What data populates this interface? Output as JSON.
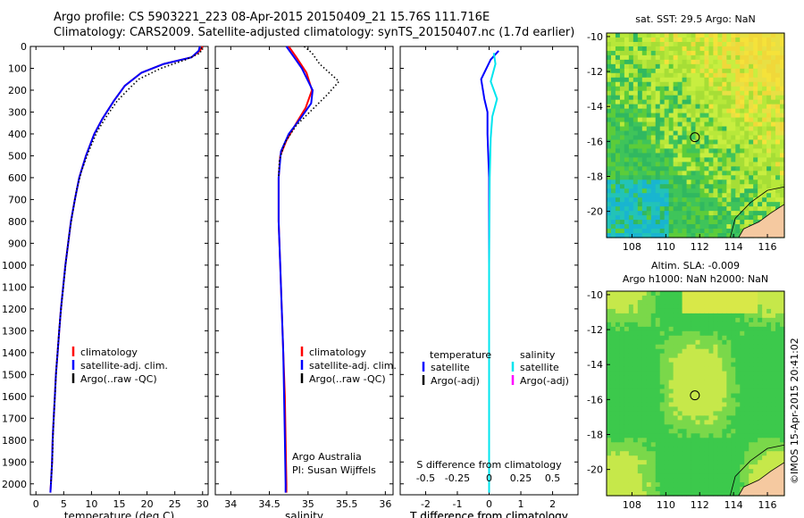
{
  "header": {
    "title": "Argo profile: CS 5903221_223 08-Apr-2015 20150409_21 15.76S 111.716E",
    "subtitle": "Climatology: CARS2009. Satellite-adjusted climatology: synTS_20150407.nc (1.7d earlier)"
  },
  "footer": {
    "stamp": "©IMOS 15-Apr-2015 20:41:02"
  },
  "colors": {
    "climatology": "#ff0000",
    "satellite": "#0000ff",
    "argo": "#000000",
    "salinity_satellite": "#00e5ee",
    "salinity_argo": "#ff00ff",
    "land": "#f5c9a0"
  },
  "chart_data": [
    {
      "id": "temperature",
      "type": "line",
      "xlabel": "temperature (deg C)",
      "ylabel": "",
      "xlim": [
        -1,
        31
      ],
      "ylim": [
        2050,
        0
      ],
      "xticks": [
        "0",
        "5",
        "10",
        "15",
        "20",
        "25",
        "30"
      ],
      "yticks": [
        "0",
        "100",
        "200",
        "300",
        "400",
        "500",
        "600",
        "700",
        "800",
        "900",
        "1000",
        "1100",
        "1200",
        "1300",
        "1400",
        "1500",
        "1600",
        "1700",
        "1800",
        "1900",
        "2000"
      ],
      "legend": [
        "climatology",
        "satellite-adj. clim.",
        "Argo(..raw -QC)"
      ],
      "series": [
        {
          "name": "climatology",
          "color": "#ff0000",
          "points": [
            [
              30,
              0
            ],
            [
              29.5,
              20
            ],
            [
              28,
              50
            ],
            [
              23,
              80
            ],
            [
              19,
              120
            ],
            [
              16,
              180
            ],
            [
              14,
              250
            ],
            [
              12,
              330
            ],
            [
              10.5,
              400
            ],
            [
              9,
              500
            ],
            [
              7.8,
              600
            ],
            [
              7,
              700
            ],
            [
              6.3,
              800
            ],
            [
              5.8,
              900
            ],
            [
              5.3,
              1000
            ],
            [
              4.9,
              1100
            ],
            [
              4.5,
              1200
            ],
            [
              4.2,
              1300
            ],
            [
              3.9,
              1400
            ],
            [
              3.6,
              1500
            ],
            [
              3.4,
              1600
            ],
            [
              3.2,
              1700
            ],
            [
              3,
              1800
            ],
            [
              2.9,
              1900
            ],
            [
              2.7,
              2000
            ],
            [
              2.6,
              2040
            ]
          ]
        },
        {
          "name": "satellite-adj. clim.",
          "color": "#0000ff",
          "points": [
            [
              29.5,
              0
            ],
            [
              29.3,
              20
            ],
            [
              28,
              50
            ],
            [
              23,
              80
            ],
            [
              19,
              120
            ],
            [
              16,
              180
            ],
            [
              14,
              250
            ],
            [
              12,
              330
            ],
            [
              10.5,
              400
            ],
            [
              9,
              500
            ],
            [
              7.8,
              600
            ],
            [
              7,
              700
            ],
            [
              6.3,
              800
            ],
            [
              5.8,
              900
            ],
            [
              5.3,
              1000
            ],
            [
              4.9,
              1100
            ],
            [
              4.5,
              1200
            ],
            [
              4.2,
              1300
            ],
            [
              3.9,
              1400
            ],
            [
              3.6,
              1500
            ],
            [
              3.4,
              1600
            ],
            [
              3.2,
              1700
            ],
            [
              3,
              1800
            ],
            [
              2.9,
              1900
            ],
            [
              2.7,
              2000
            ],
            [
              2.6,
              2040
            ]
          ]
        },
        {
          "name": "Argo(..raw -QC)",
          "color": "#000000",
          "dash": true,
          "points": [
            [
              29.8,
              5
            ],
            [
              29.6,
              30
            ],
            [
              27,
              60
            ],
            [
              22.5,
              100
            ],
            [
              18.5,
              150
            ],
            [
              16.5,
              200
            ],
            [
              14.6,
              250
            ],
            [
              12.7,
              320
            ],
            [
              11,
              390
            ],
            [
              9.5,
              480
            ],
            [
              8.2,
              570
            ],
            [
              7.3,
              660
            ],
            [
              6.6,
              760
            ],
            [
              6,
              860
            ],
            [
              5.5,
              960
            ],
            [
              5.1,
              1060
            ],
            [
              4.7,
              1160
            ],
            [
              4.3,
              1260
            ],
            [
              4,
              1360
            ],
            [
              3.7,
              1460
            ],
            [
              3.5,
              1560
            ],
            [
              3.3,
              1660
            ],
            [
              3.1,
              1760
            ],
            [
              3,
              1860
            ],
            [
              2.8,
              1960
            ],
            [
              2.7,
              2000
            ]
          ]
        }
      ]
    },
    {
      "id": "salinity",
      "type": "line",
      "xlabel": "salinity",
      "xlim": [
        33.8,
        36.1
      ],
      "ylim": [
        2050,
        0
      ],
      "xticks": [
        "34",
        "34.5",
        "35",
        "35.5",
        "36"
      ],
      "legend": [
        "climatology",
        "satellite-adj. clim.",
        "Argo(..raw -QC)"
      ],
      "annotation": [
        "Argo Australia",
        "PI: Susan Wijffels"
      ],
      "series": [
        {
          "name": "climatology",
          "color": "#ff0000",
          "points": [
            [
              34.75,
              0
            ],
            [
              34.85,
              50
            ],
            [
              34.98,
              120
            ],
            [
              35.05,
              200
            ],
            [
              34.97,
              280
            ],
            [
              34.85,
              350
            ],
            [
              34.72,
              430
            ],
            [
              34.64,
              500
            ],
            [
              34.62,
              600
            ],
            [
              34.62,
              800
            ],
            [
              34.64,
              1000
            ],
            [
              34.66,
              1200
            ],
            [
              34.68,
              1400
            ],
            [
              34.7,
              1600
            ],
            [
              34.71,
              1800
            ],
            [
              34.72,
              2000
            ],
            [
              34.72,
              2040
            ]
          ]
        },
        {
          "name": "satellite-adj. clim.",
          "color": "#0000ff",
          "points": [
            [
              34.72,
              0
            ],
            [
              34.82,
              50
            ],
            [
              34.92,
              100
            ],
            [
              35.06,
              200
            ],
            [
              35.04,
              260
            ],
            [
              34.9,
              330
            ],
            [
              34.75,
              400
            ],
            [
              34.65,
              480
            ],
            [
              34.62,
              600
            ],
            [
              34.62,
              800
            ],
            [
              34.64,
              1000
            ],
            [
              34.66,
              1200
            ],
            [
              34.68,
              1400
            ],
            [
              34.69,
              1600
            ],
            [
              34.7,
              1800
            ],
            [
              34.71,
              2000
            ],
            [
              34.71,
              2040
            ]
          ]
        },
        {
          "name": "Argo(..raw -QC)",
          "color": "#000000",
          "dash": true,
          "points": [
            [
              34.95,
              0
            ],
            [
              35.05,
              30
            ],
            [
              35.15,
              80
            ],
            [
              35.4,
              160
            ],
            [
              35.25,
              220
            ],
            [
              35.05,
              290
            ],
            [
              34.85,
              360
            ],
            [
              34.7,
              440
            ],
            [
              34.63,
              520
            ],
            [
              34.62,
              600
            ]
          ]
        }
      ]
    },
    {
      "id": "difference",
      "type": "line",
      "xlabel": "T difference from climatology",
      "xlabel_top": "S difference from climatology",
      "xlim": [
        -2.8,
        2.8
      ],
      "ylim": [
        2050,
        0
      ],
      "xticks": [
        "-2",
        "-1",
        "0",
        "1",
        "2"
      ],
      "xticks_top": [
        "-0.5",
        "-0.25",
        "0",
        "0.25",
        "0.5"
      ],
      "legend_headers": [
        "temperature",
        "salinity"
      ],
      "legend": [
        "satellite",
        "Argo(-adj)",
        "satellite",
        "Argo(-adj)"
      ],
      "series": [
        {
          "name": "satellite",
          "group": "temperature",
          "color": "#0000ff",
          "points": [
            [
              0.3,
              20
            ],
            [
              0.05,
              60
            ],
            [
              -0.25,
              150
            ],
            [
              -0.15,
              240
            ],
            [
              -0.05,
              300
            ],
            [
              -0.05,
              400
            ],
            [
              0,
              600
            ],
            [
              0,
              1000
            ],
            [
              0,
              2040
            ]
          ]
        },
        {
          "name": "satellite",
          "group": "salinity",
          "color": "#00e5ee",
          "points": [
            [
              0.15,
              30
            ],
            [
              0.2,
              80
            ],
            [
              0.05,
              160
            ],
            [
              0.25,
              240
            ],
            [
              0.1,
              320
            ],
            [
              0.05,
              420
            ],
            [
              0.02,
              600
            ],
            [
              0,
              1000
            ],
            [
              0,
              2040
            ]
          ]
        }
      ]
    },
    {
      "id": "sst-map",
      "type": "heatmap",
      "title": "sat. SST: 29.5 Argo: NaN",
      "xlim": [
        106.5,
        117
      ],
      "ylim": [
        -21.5,
        -9.8
      ],
      "xticks": [
        "108",
        "110",
        "112",
        "114",
        "116"
      ],
      "yticks": [
        "-10",
        "-12",
        "-14",
        "-16",
        "-18",
        "-20"
      ],
      "marker": [
        111.716,
        -15.76
      ]
    },
    {
      "id": "sla-map",
      "type": "heatmap",
      "title": "Altim. SLA: -0.009",
      "subtitle": "Argo h1000: NaN h2000: NaN",
      "xlim": [
        106.5,
        117
      ],
      "ylim": [
        -21.5,
        -9.8
      ],
      "xticks": [
        "108",
        "110",
        "112",
        "114",
        "116"
      ],
      "yticks": [
        "-10",
        "-12",
        "-14",
        "-16",
        "-18",
        "-20"
      ],
      "marker": [
        111.716,
        -15.76
      ]
    }
  ]
}
